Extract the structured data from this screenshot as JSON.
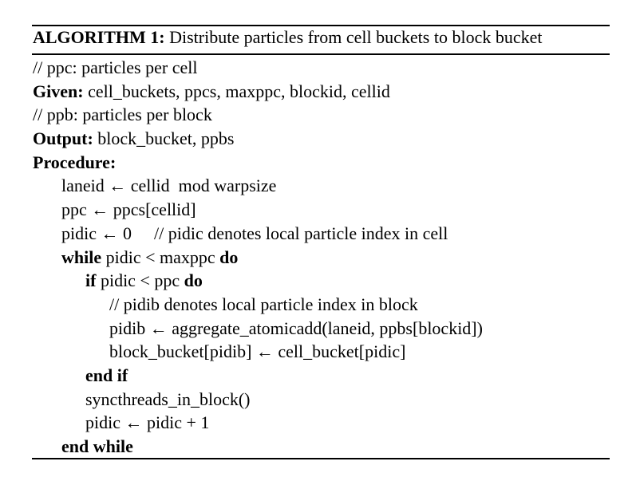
{
  "header": {
    "label": "ALGORITHM 1:",
    "title": "Distribute particles from cell buckets to block bucket"
  },
  "lines": [
    {
      "text": "// ppc: particles per cell"
    },
    {
      "keyword": "Given:",
      "text": "cell_buckets, ppcs, maxppc, blockid, cellid"
    },
    {
      "text": "// ppb: particles per block"
    },
    {
      "keyword": "Output:",
      "text": "block_bucket, ppbs"
    },
    {
      "keyword": "Procedure:"
    },
    {
      "text": "laneid ← cellid  mod warpsize"
    },
    {
      "text": "ppc ← ppcs[cellid]"
    },
    {
      "text": "pidic ← 0",
      "comment": "// pidic denotes local particle index in cell"
    },
    {
      "keyword": "while",
      "text": "pidic < maxppc",
      "keyword_end": "do"
    },
    {
      "keyword": "if",
      "text": "pidic < ppc",
      "keyword_end": "do"
    },
    {
      "text": "// pidib denotes local particle index in block"
    },
    {
      "text": "pidib ← aggregate_atomicadd(laneid, ppbs[blockid])"
    },
    {
      "text": "block_bucket[pidib] ← cell_bucket[pidic]"
    },
    {
      "keyword": "end if"
    },
    {
      "text": "syncthreads_in_block()"
    },
    {
      "text": "pidic ← pidic + 1"
    },
    {
      "keyword": "end while"
    }
  ]
}
